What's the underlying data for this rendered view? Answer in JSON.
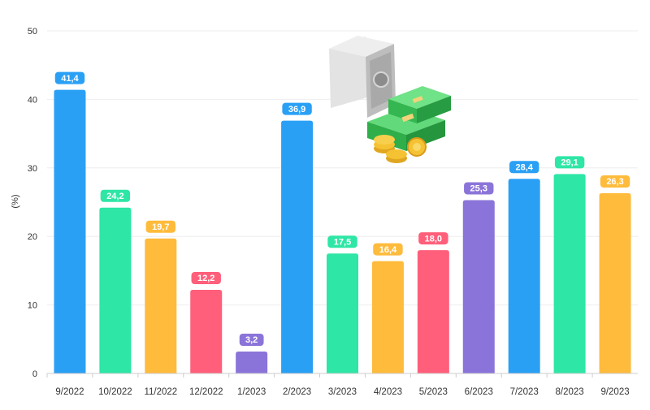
{
  "chart_data": {
    "type": "bar",
    "categories": [
      "9/2022",
      "10/2022",
      "11/2022",
      "12/2022",
      "1/2023",
      "2/2023",
      "3/2023",
      "4/2023",
      "5/2023",
      "6/2023",
      "7/2023",
      "8/2023",
      "9/2023"
    ],
    "values": [
      41.4,
      24.2,
      19.7,
      12.2,
      3.2,
      36.9,
      17.5,
      16.4,
      18.0,
      25.3,
      28.4,
      29.1,
      26.3
    ],
    "value_labels": [
      "41,4",
      "24,2",
      "19,7",
      "12,2",
      "3,2",
      "36,9",
      "17,5",
      "16,4",
      "18,0",
      "25,3",
      "28,4",
      "29,1",
      "26,3"
    ],
    "bar_colors": [
      "#2aa0f5",
      "#2ee6a6",
      "#ffbb3c",
      "#ff5f7a",
      "#8b74d9",
      "#2aa0f5",
      "#2ee6a6",
      "#ffbb3c",
      "#ff5f7a",
      "#8b74d9",
      "#2aa0f5",
      "#2ee6a6",
      "#ffbb3c"
    ],
    "title": "",
    "xlabel": "",
    "ylabel": "(%)",
    "ylim": [
      0,
      50
    ],
    "yticks": [
      0,
      10,
      20,
      30,
      40,
      50
    ],
    "ytick_labels": [
      "0",
      "10",
      "20",
      "30",
      "40",
      "50"
    ],
    "grid": true,
    "legend": "none"
  },
  "illustration": {
    "icon": "safe-with-money-icon",
    "colors": {
      "safe": "#cfcfcf",
      "cash": "#3cc65a",
      "coin": "#f5c233"
    }
  }
}
